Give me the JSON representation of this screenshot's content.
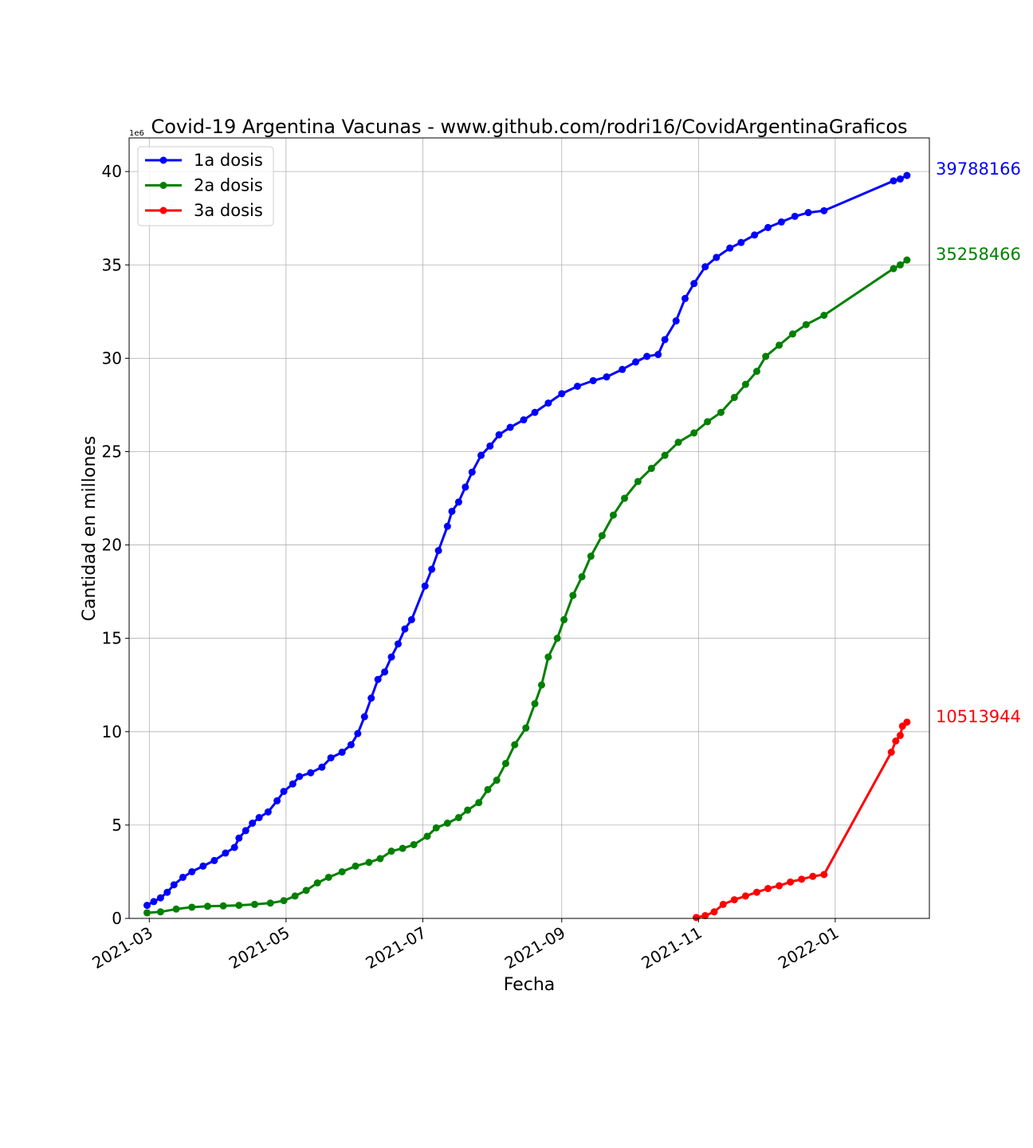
{
  "chart_data": {
    "type": "line",
    "title": "Covid-19 Argentina Vacunas - www.github.com/rodri16/CovidArgentinaGraficos",
    "xlabel": "Fecha",
    "ylabel": "Cantidad en millones",
    "y_multiplier_label": "1e6",
    "grid": true,
    "legend_position": "top-left",
    "xlim": [
      "2021-02-20",
      "2022-02-12"
    ],
    "ylim": [
      0,
      41.8
    ],
    "x_ticks": [
      "2021-03-01",
      "2021-05-01",
      "2021-07-01",
      "2021-09-01",
      "2021-11-01",
      "2022-01-01"
    ],
    "x_tick_labels": [
      "2021-03",
      "2021-05",
      "2021-07",
      "2021-09",
      "2021-11",
      "2022-01"
    ],
    "y_ticks": [
      0,
      5,
      10,
      15,
      20,
      25,
      30,
      35,
      40
    ],
    "y_tick_labels": [
      "0",
      "5",
      "10",
      "15",
      "20",
      "25",
      "30",
      "35",
      "40"
    ],
    "series": [
      {
        "name": "1a dosis",
        "color": "#0000ff",
        "end_label": "39788166",
        "points": [
          [
            "2021-02-28",
            0.7
          ],
          [
            "2021-03-03",
            0.9
          ],
          [
            "2021-03-06",
            1.1
          ],
          [
            "2021-03-09",
            1.4
          ],
          [
            "2021-03-12",
            1.8
          ],
          [
            "2021-03-16",
            2.2
          ],
          [
            "2021-03-20",
            2.5
          ],
          [
            "2021-03-25",
            2.8
          ],
          [
            "2021-03-30",
            3.1
          ],
          [
            "2021-04-04",
            3.5
          ],
          [
            "2021-04-08",
            3.8
          ],
          [
            "2021-04-10",
            4.3
          ],
          [
            "2021-04-13",
            4.7
          ],
          [
            "2021-04-16",
            5.1
          ],
          [
            "2021-04-19",
            5.4
          ],
          [
            "2021-04-23",
            5.7
          ],
          [
            "2021-04-27",
            6.3
          ],
          [
            "2021-04-30",
            6.8
          ],
          [
            "2021-05-04",
            7.2
          ],
          [
            "2021-05-07",
            7.6
          ],
          [
            "2021-05-12",
            7.8
          ],
          [
            "2021-05-17",
            8.1
          ],
          [
            "2021-05-21",
            8.6
          ],
          [
            "2021-05-26",
            8.9
          ],
          [
            "2021-05-30",
            9.3
          ],
          [
            "2021-06-02",
            9.9
          ],
          [
            "2021-06-05",
            10.8
          ],
          [
            "2021-06-08",
            11.8
          ],
          [
            "2021-06-11",
            12.8
          ],
          [
            "2021-06-14",
            13.2
          ],
          [
            "2021-06-17",
            14.0
          ],
          [
            "2021-06-20",
            14.7
          ],
          [
            "2021-06-23",
            15.5
          ],
          [
            "2021-06-26",
            16.0
          ],
          [
            "2021-07-02",
            17.8
          ],
          [
            "2021-07-05",
            18.7
          ],
          [
            "2021-07-08",
            19.7
          ],
          [
            "2021-07-12",
            21.0
          ],
          [
            "2021-07-14",
            21.8
          ],
          [
            "2021-07-17",
            22.3
          ],
          [
            "2021-07-20",
            23.1
          ],
          [
            "2021-07-23",
            23.9
          ],
          [
            "2021-07-27",
            24.8
          ],
          [
            "2021-07-31",
            25.3
          ],
          [
            "2021-08-04",
            25.9
          ],
          [
            "2021-08-09",
            26.3
          ],
          [
            "2021-08-15",
            26.7
          ],
          [
            "2021-08-20",
            27.1
          ],
          [
            "2021-08-26",
            27.6
          ],
          [
            "2021-09-01",
            28.1
          ],
          [
            "2021-09-08",
            28.5
          ],
          [
            "2021-09-15",
            28.8
          ],
          [
            "2021-09-21",
            29.0
          ],
          [
            "2021-09-28",
            29.4
          ],
          [
            "2021-10-04",
            29.8
          ],
          [
            "2021-10-09",
            30.1
          ],
          [
            "2021-10-14",
            30.2
          ],
          [
            "2021-10-17",
            31.0
          ],
          [
            "2021-10-22",
            32.0
          ],
          [
            "2021-10-26",
            33.2
          ],
          [
            "2021-10-30",
            34.0
          ],
          [
            "2021-11-04",
            34.9
          ],
          [
            "2021-11-09",
            35.4
          ],
          [
            "2021-11-15",
            35.9
          ],
          [
            "2021-11-20",
            36.2
          ],
          [
            "2021-11-26",
            36.6
          ],
          [
            "2021-12-02",
            37.0
          ],
          [
            "2021-12-08",
            37.3
          ],
          [
            "2021-12-14",
            37.6
          ],
          [
            "2021-12-20",
            37.8
          ],
          [
            "2021-12-27",
            37.9
          ],
          [
            "2022-01-27",
            39.5
          ],
          [
            "2022-01-30",
            39.6
          ],
          [
            "2022-02-02",
            39.79
          ]
        ]
      },
      {
        "name": "2a dosis",
        "color": "#008000",
        "end_label": "35258466",
        "points": [
          [
            "2021-02-28",
            0.3
          ],
          [
            "2021-03-06",
            0.35
          ],
          [
            "2021-03-13",
            0.5
          ],
          [
            "2021-03-20",
            0.6
          ],
          [
            "2021-03-27",
            0.65
          ],
          [
            "2021-04-03",
            0.67
          ],
          [
            "2021-04-10",
            0.7
          ],
          [
            "2021-04-17",
            0.75
          ],
          [
            "2021-04-24",
            0.82
          ],
          [
            "2021-04-30",
            0.95
          ],
          [
            "2021-05-05",
            1.2
          ],
          [
            "2021-05-10",
            1.5
          ],
          [
            "2021-05-15",
            1.9
          ],
          [
            "2021-05-20",
            2.2
          ],
          [
            "2021-05-26",
            2.5
          ],
          [
            "2021-06-01",
            2.8
          ],
          [
            "2021-06-07",
            3.0
          ],
          [
            "2021-06-12",
            3.2
          ],
          [
            "2021-06-17",
            3.6
          ],
          [
            "2021-06-22",
            3.75
          ],
          [
            "2021-06-27",
            3.95
          ],
          [
            "2021-07-03",
            4.4
          ],
          [
            "2021-07-07",
            4.85
          ],
          [
            "2021-07-12",
            5.1
          ],
          [
            "2021-07-17",
            5.4
          ],
          [
            "2021-07-21",
            5.8
          ],
          [
            "2021-07-26",
            6.2
          ],
          [
            "2021-07-30",
            6.9
          ],
          [
            "2021-08-03",
            7.4
          ],
          [
            "2021-08-07",
            8.3
          ],
          [
            "2021-08-11",
            9.3
          ],
          [
            "2021-08-16",
            10.2
          ],
          [
            "2021-08-20",
            11.5
          ],
          [
            "2021-08-23",
            12.5
          ],
          [
            "2021-08-26",
            14.0
          ],
          [
            "2021-08-30",
            15.0
          ],
          [
            "2021-09-02",
            16.0
          ],
          [
            "2021-09-06",
            17.3
          ],
          [
            "2021-09-10",
            18.3
          ],
          [
            "2021-09-14",
            19.4
          ],
          [
            "2021-09-19",
            20.5
          ],
          [
            "2021-09-24",
            21.6
          ],
          [
            "2021-09-29",
            22.5
          ],
          [
            "2021-10-05",
            23.4
          ],
          [
            "2021-10-11",
            24.1
          ],
          [
            "2021-10-17",
            24.8
          ],
          [
            "2021-10-23",
            25.5
          ],
          [
            "2021-10-30",
            26.0
          ],
          [
            "2021-11-05",
            26.6
          ],
          [
            "2021-11-11",
            27.1
          ],
          [
            "2021-11-17",
            27.9
          ],
          [
            "2021-11-22",
            28.6
          ],
          [
            "2021-11-27",
            29.3
          ],
          [
            "2021-12-01",
            30.1
          ],
          [
            "2021-12-07",
            30.7
          ],
          [
            "2021-12-13",
            31.3
          ],
          [
            "2021-12-19",
            31.8
          ],
          [
            "2021-12-27",
            32.3
          ],
          [
            "2022-01-27",
            34.8
          ],
          [
            "2022-01-30",
            35.0
          ],
          [
            "2022-02-02",
            35.26
          ]
        ]
      },
      {
        "name": "3a dosis",
        "color": "#ff0000",
        "end_label": "10513944",
        "points": [
          [
            "2021-10-31",
            0.05
          ],
          [
            "2021-11-04",
            0.15
          ],
          [
            "2021-11-08",
            0.35
          ],
          [
            "2021-11-12",
            0.75
          ],
          [
            "2021-11-17",
            1.0
          ],
          [
            "2021-11-22",
            1.2
          ],
          [
            "2021-11-27",
            1.4
          ],
          [
            "2021-12-02",
            1.6
          ],
          [
            "2021-12-07",
            1.75
          ],
          [
            "2021-12-12",
            1.95
          ],
          [
            "2021-12-17",
            2.1
          ],
          [
            "2021-12-22",
            2.25
          ],
          [
            "2021-12-27",
            2.35
          ],
          [
            "2022-01-26",
            8.9
          ],
          [
            "2022-01-28",
            9.5
          ],
          [
            "2022-01-30",
            9.8
          ],
          [
            "2022-01-31",
            10.3
          ],
          [
            "2022-02-02",
            10.51
          ]
        ]
      }
    ]
  }
}
